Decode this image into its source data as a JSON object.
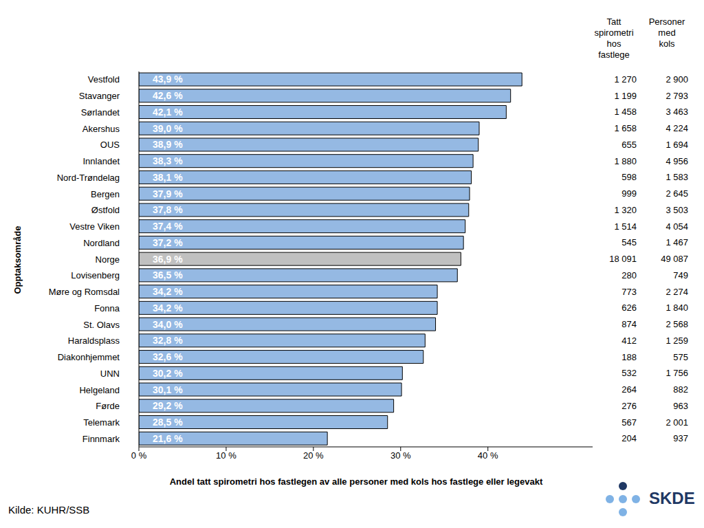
{
  "chart_data": {
    "type": "bar",
    "orientation": "horizontal",
    "categories": [
      "Vestfold",
      "Stavanger",
      "Sørlandet",
      "Akershus",
      "OUS",
      "Innlandet",
      "Nord-Trøndelag",
      "Bergen",
      "Østfold",
      "Vestre Viken",
      "Nordland",
      "Norge",
      "Lovisenberg",
      "Møre og Romsdal",
      "Fonna",
      "St. Olavs",
      "Haraldsplass",
      "Diakonhjemmet",
      "UNN",
      "Helgeland",
      "Førde",
      "Telemark",
      "Finnmark"
    ],
    "values": [
      43.9,
      42.6,
      42.1,
      39.0,
      38.9,
      38.3,
      38.1,
      37.9,
      37.8,
      37.4,
      37.2,
      36.9,
      36.5,
      34.2,
      34.2,
      34.0,
      32.8,
      32.6,
      30.2,
      30.1,
      29.2,
      28.5,
      21.6
    ],
    "value_labels": [
      "43,9 %",
      "42,6 %",
      "42,1 %",
      "39,0 %",
      "38,9 %",
      "38,3 %",
      "38,1 %",
      "37,9 %",
      "37,8 %",
      "37,4 %",
      "37,2 %",
      "36,9 %",
      "36,5 %",
      "34,2 %",
      "34,2 %",
      "34,0 %",
      "32,8 %",
      "32,6 %",
      "30,2 %",
      "30,1 %",
      "29,2 %",
      "28,5 %",
      "21,6 %"
    ],
    "colors": [
      "#95b9e3",
      "#95b9e3",
      "#95b9e3",
      "#95b9e3",
      "#95b9e3",
      "#95b9e3",
      "#95b9e3",
      "#95b9e3",
      "#95b9e3",
      "#95b9e3",
      "#95b9e3",
      "#c0c0c0",
      "#95b9e3",
      "#95b9e3",
      "#95b9e3",
      "#95b9e3",
      "#95b9e3",
      "#95b9e3",
      "#95b9e3",
      "#95b9e3",
      "#95b9e3",
      "#95b9e3",
      "#95b9e3"
    ],
    "data_labels": true,
    "grid": false,
    "xlim": [
      0,
      52
    ],
    "xticks": [
      {
        "value": 0,
        "label": "0 %"
      },
      {
        "value": 10,
        "label": "10 %"
      },
      {
        "value": 20,
        "label": "20 %"
      },
      {
        "value": 30,
        "label": "30 %"
      },
      {
        "value": 40,
        "label": "40 %"
      }
    ],
    "x_label": "Andel tatt spirometri hos fastlegen av alle personer med kols hos fastlege eller legevakt",
    "y_label": "Opptaksområde"
  },
  "table": {
    "headers": [
      "Tatt spirometri hos fastlege",
      "Personer med kols"
    ],
    "rows": [
      [
        "1 270",
        "2 900"
      ],
      [
        "1 199",
        "2 793"
      ],
      [
        "1 458",
        "3 463"
      ],
      [
        "1 658",
        "4 224"
      ],
      [
        "655",
        "1 694"
      ],
      [
        "1 880",
        "4 956"
      ],
      [
        "598",
        "1 583"
      ],
      [
        "999",
        "2 645"
      ],
      [
        "1 320",
        "3 503"
      ],
      [
        "1 514",
        "4 054"
      ],
      [
        "545",
        "1 467"
      ],
      [
        "18 091",
        "49 087"
      ],
      [
        "280",
        "749"
      ],
      [
        "773",
        "2 274"
      ],
      [
        "626",
        "1 840"
      ],
      [
        "874",
        "2 568"
      ],
      [
        "412",
        "1 259"
      ],
      [
        "188",
        "575"
      ],
      [
        "532",
        "1 756"
      ],
      [
        "264",
        "882"
      ],
      [
        "276",
        "963"
      ],
      [
        "567",
        "2 001"
      ],
      [
        "204",
        "937"
      ]
    ]
  },
  "source": "Kilde: KUHR/SSB",
  "logo": "SKDE"
}
